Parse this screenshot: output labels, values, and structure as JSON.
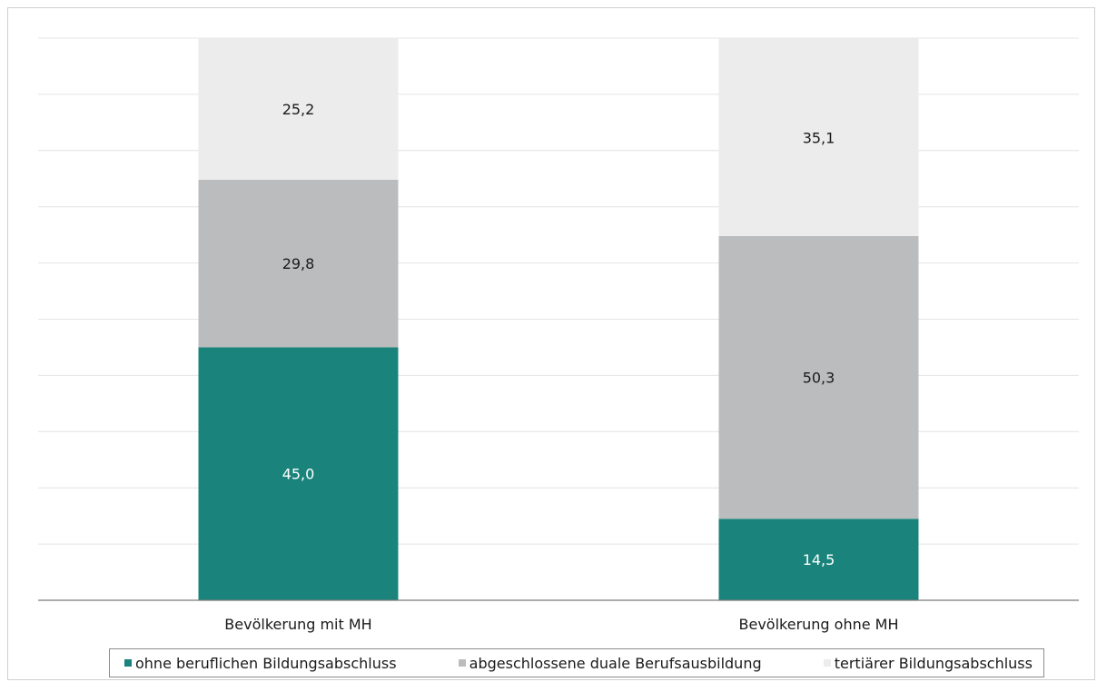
{
  "chart_data": {
    "type": "bar",
    "stacked": true,
    "percent_stacked": true,
    "categories": [
      "Bevölkerung mit MH",
      "Bevölkerung ohne MH"
    ],
    "series": [
      {
        "name": "ohne beruflichen Bildungsabschluss",
        "values": [
          45.0,
          14.5
        ],
        "labels": [
          "45,0",
          "14,5"
        ],
        "color": "#1a847c",
        "label_color": "#ffffff"
      },
      {
        "name": "abgeschlossene duale Berufsausbildung",
        "values": [
          29.8,
          50.3
        ],
        "labels": [
          "29,8",
          "50,3"
        ],
        "color": "#bbbcbe",
        "label_color": "#1a1a1a"
      },
      {
        "name": "tertiärer Bildungsabschluss",
        "values": [
          25.2,
          35.1
        ],
        "labels": [
          "25,2",
          "35,1"
        ],
        "color": "#ececec",
        "label_color": "#1a1a1a"
      }
    ],
    "ylim": [
      0,
      100
    ],
    "grid": true,
    "legend_position": "bottom",
    "xlabel": "",
    "ylabel": ""
  }
}
